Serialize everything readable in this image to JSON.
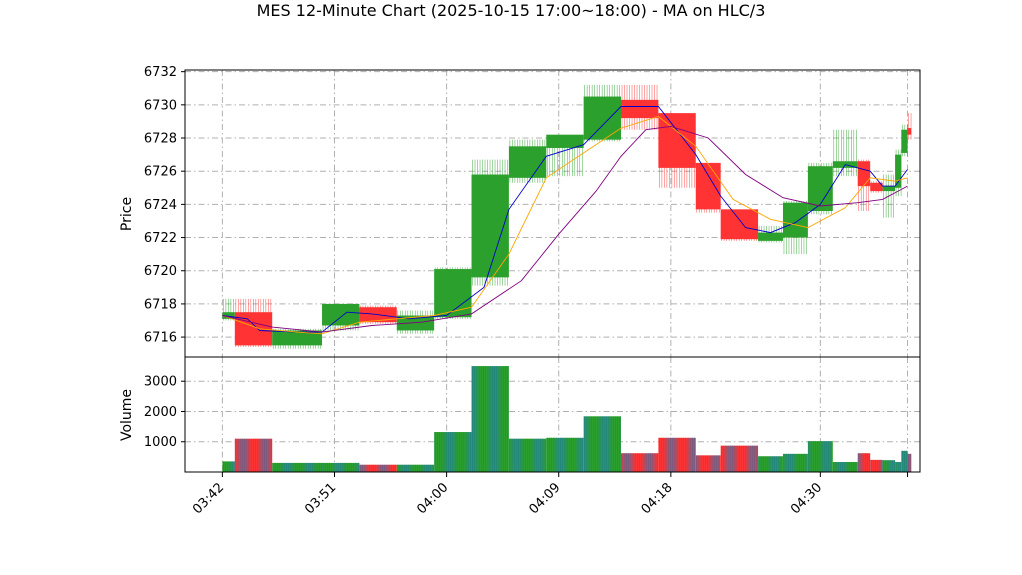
{
  "chart_data": {
    "type": "candlestick",
    "title": "MES 12-Minute Chart (2025-10-15 17:00~18:00) - MA on HLC/3",
    "price_panel": {
      "ylabel": "Price",
      "ylim": [
        6714.8,
        6732.1
      ],
      "yticks": [
        6716,
        6718,
        6720,
        6722,
        6724,
        6726,
        6728,
        6730,
        6732
      ],
      "grid": true
    },
    "volume_panel": {
      "ylabel": "Volume",
      "ylim": [
        0,
        3800
      ],
      "yticks": [
        1000,
        2000,
        3000
      ],
      "grid": true
    },
    "xaxis": {
      "range": [
        "03:39",
        "04:38"
      ],
      "tick_labels": [
        "03:42",
        "03:51",
        "04:00",
        "04:09",
        "04:18",
        "04:30"
      ],
      "ticks": [
        "03:42",
        "03:51",
        "04:00",
        "04:09",
        "04:18",
        "04:30",
        "04:37"
      ]
    },
    "colors": {
      "up": "#2ca02c",
      "down": "#ff3333",
      "volume": "#1f77b4",
      "ma_fast": "#0000cd",
      "ma_mid": "#ffa500",
      "ma_slow": "#800080",
      "grid": "#b0b0b0"
    },
    "candles": [
      {
        "t0": "03:42",
        "t1": "03:43",
        "open": 6717.1,
        "high": 6718.3,
        "low": 6717.0,
        "close": 6717.5,
        "volume": 350
      },
      {
        "t0": "03:43",
        "t1": "03:46",
        "open": 6717.5,
        "high": 6718.3,
        "low": 6715.4,
        "close": 6715.5,
        "volume": 1100
      },
      {
        "t0": "03:46",
        "t1": "03:50",
        "open": 6715.5,
        "high": 6716.5,
        "low": 6715.3,
        "close": 6716.4,
        "volume": 300
      },
      {
        "t0": "03:50",
        "t1": "03:53",
        "open": 6716.7,
        "high": 6718.0,
        "low": 6716.4,
        "close": 6718.0,
        "volume": 300
      },
      {
        "t0": "03:53",
        "t1": "03:56",
        "open": 6717.8,
        "high": 6717.9,
        "low": 6716.8,
        "close": 6716.9,
        "volume": 240
      },
      {
        "t0": "03:56",
        "t1": "03:59",
        "open": 6716.4,
        "high": 6717.6,
        "low": 6716.2,
        "close": 6717.3,
        "volume": 240
      },
      {
        "t0": "03:59",
        "t1": "04:02",
        "open": 6717.2,
        "high": 6720.2,
        "low": 6717.1,
        "close": 6720.1,
        "volume": 1320
      },
      {
        "t0": "04:02",
        "t1": "04:05",
        "open": 6719.6,
        "high": 6726.7,
        "low": 6719.1,
        "close": 6725.8,
        "volume": 3500
      },
      {
        "t0": "04:05",
        "t1": "04:08",
        "open": 6725.6,
        "high": 6727.9,
        "low": 6725.3,
        "close": 6727.5,
        "volume": 1100
      },
      {
        "t0": "04:08",
        "t1": "04:11",
        "open": 6727.4,
        "high": 6728.2,
        "low": 6725.7,
        "close": 6728.2,
        "volume": 1130
      },
      {
        "t0": "04:11",
        "t1": "04:14",
        "open": 6727.9,
        "high": 6731.2,
        "low": 6727.8,
        "close": 6730.5,
        "volume": 1840
      },
      {
        "t0": "04:14",
        "t1": "04:17",
        "open": 6730.3,
        "high": 6731.2,
        "low": 6728.5,
        "close": 6729.2,
        "volume": 620
      },
      {
        "t0": "04:17",
        "t1": "04:20",
        "open": 6729.5,
        "high": 6729.5,
        "low": 6725.0,
        "close": 6726.2,
        "volume": 1130
      },
      {
        "t0": "04:20",
        "t1": "04:22",
        "open": 6726.5,
        "high": 6726.5,
        "low": 6723.5,
        "close": 6723.7,
        "volume": 550
      },
      {
        "t0": "04:22",
        "t1": "04:25",
        "open": 6723.7,
        "high": 6723.7,
        "low": 6721.8,
        "close": 6721.9,
        "volume": 870
      },
      {
        "t0": "04:25",
        "t1": "04:27",
        "open": 6721.8,
        "high": 6722.7,
        "low": 6721.7,
        "close": 6722.3,
        "volume": 520
      },
      {
        "t0": "04:27",
        "t1": "04:29",
        "open": 6722.0,
        "high": 6724.2,
        "low": 6721.0,
        "close": 6724.1,
        "volume": 600
      },
      {
        "t0": "04:29",
        "t1": "04:31",
        "open": 6723.6,
        "high": 6726.5,
        "low": 6723.4,
        "close": 6726.3,
        "volume": 1020
      },
      {
        "t0": "04:31",
        "t1": "04:33",
        "open": 6726.2,
        "high": 6728.5,
        "low": 6725.7,
        "close": 6726.6,
        "volume": 330
      },
      {
        "t0": "04:33",
        "t1": "04:34",
        "open": 6726.6,
        "high": 6726.7,
        "low": 6723.6,
        "close": 6725.1,
        "volume": 620
      },
      {
        "t0": "04:34",
        "t1": "04:35",
        "open": 6725.3,
        "high": 6725.4,
        "low": 6724.7,
        "close": 6724.8,
        "volume": 400
      },
      {
        "t0": "04:35",
        "t1": "04:36",
        "open": 6724.8,
        "high": 6725.8,
        "low": 6723.2,
        "close": 6725.1,
        "volume": 390
      },
      {
        "t0": "04:36",
        "t1": "04:36.5",
        "open": 6725.0,
        "high": 6727.3,
        "low": 6724.5,
        "close": 6727.0,
        "volume": 330
      },
      {
        "t0": "04:36.5",
        "t1": "04:37",
        "open": 6727.1,
        "high": 6728.8,
        "low": 6726.9,
        "close": 6728.5,
        "volume": 700
      },
      {
        "t0": "04:37",
        "t1": "04:37.3",
        "open": 6728.6,
        "high": 6729.5,
        "low": 6727.9,
        "close": 6728.2,
        "volume": 600
      }
    ],
    "series": [
      {
        "values": [
          [
            "03:42",
            6717.3
          ],
          [
            "03:44",
            6717.1
          ],
          [
            "03:45",
            6716.4
          ],
          [
            "03:48",
            6716.3
          ],
          [
            "03:50",
            6716.3
          ],
          [
            "03:52",
            6717.5
          ],
          [
            "03:54",
            6717.4
          ],
          [
            "03:57",
            6717.1
          ],
          [
            "04:00",
            6717.3
          ],
          [
            "04:03",
            6719.0
          ],
          [
            "04:05",
            6723.7
          ],
          [
            "04:08",
            6726.9
          ],
          [
            "04:11",
            6727.6
          ],
          [
            "04:14",
            6729.9
          ],
          [
            "04:17",
            6729.9
          ],
          [
            "04:20",
            6727.0
          ],
          [
            "04:22",
            6724.5
          ],
          [
            "04:24",
            6722.6
          ],
          [
            "04:26",
            6722.3
          ],
          [
            "04:28",
            6722.9
          ],
          [
            "04:30",
            6724.0
          ],
          [
            "04:32",
            6726.4
          ],
          [
            "04:34",
            6726.0
          ],
          [
            "04:35",
            6725.1
          ],
          [
            "04:36",
            6725.1
          ],
          [
            "04:37",
            6726.1
          ]
        ]
      },
      {
        "values": [
          [
            "03:42",
            6717.3
          ],
          [
            "03:45",
            6716.5
          ],
          [
            "03:48",
            6716.3
          ],
          [
            "03:50",
            6716.2
          ],
          [
            "03:53",
            6716.9
          ],
          [
            "03:56",
            6717.1
          ],
          [
            "03:59",
            6717.3
          ],
          [
            "04:02",
            6717.8
          ],
          [
            "04:05",
            6721.0
          ],
          [
            "04:08",
            6725.6
          ],
          [
            "04:11",
            6727.1
          ],
          [
            "04:14",
            6728.6
          ],
          [
            "04:17",
            6729.3
          ],
          [
            "04:20",
            6727.5
          ],
          [
            "04:23",
            6724.3
          ],
          [
            "04:26",
            6723.1
          ],
          [
            "04:29",
            6722.6
          ],
          [
            "04:32",
            6723.8
          ],
          [
            "04:34",
            6725.6
          ],
          [
            "04:36",
            6725.4
          ],
          [
            "04:37",
            6725.6
          ]
        ]
      },
      {
        "values": [
          [
            "03:42",
            6717.3
          ],
          [
            "03:46",
            6716.6
          ],
          [
            "03:50",
            6716.3
          ],
          [
            "03:54",
            6716.7
          ],
          [
            "03:58",
            6716.9
          ],
          [
            "04:02",
            6717.4
          ],
          [
            "04:06",
            6719.4
          ],
          [
            "04:09",
            6722.2
          ],
          [
            "04:12",
            6724.8
          ],
          [
            "04:14",
            6726.9
          ],
          [
            "04:16",
            6728.5
          ],
          [
            "04:18",
            6728.7
          ],
          [
            "04:21",
            6728.0
          ],
          [
            "04:24",
            6725.8
          ],
          [
            "04:27",
            6724.4
          ],
          [
            "04:30",
            6723.9
          ],
          [
            "04:33",
            6724.1
          ],
          [
            "04:35",
            6724.3
          ],
          [
            "04:37",
            6725.1
          ]
        ]
      }
    ]
  }
}
